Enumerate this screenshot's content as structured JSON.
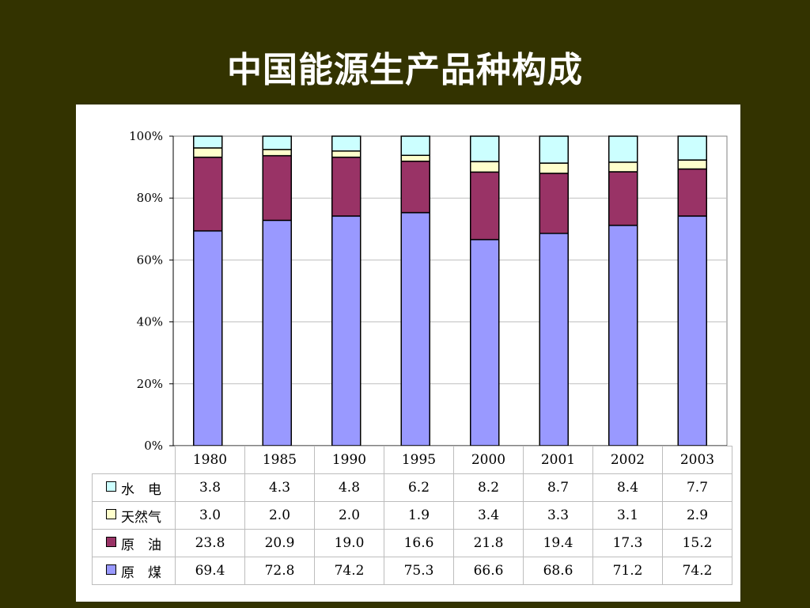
{
  "title": "中国能源生产品种构成",
  "chart_data": {
    "type": "bar",
    "stacked": true,
    "categories": [
      "1980",
      "1985",
      "1990",
      "1995",
      "2000",
      "2001",
      "2002",
      "2003"
    ],
    "series": [
      {
        "name": "原　煤",
        "color": "#9999ff",
        "values": [
          69.4,
          72.8,
          74.2,
          75.3,
          66.6,
          68.6,
          71.2,
          74.2
        ],
        "labels": [
          "69.4",
          "72.8",
          "74.2",
          "75.3",
          "66.6",
          "68.6",
          "71.2",
          "74.2"
        ]
      },
      {
        "name": "原　油",
        "color": "#993366",
        "values": [
          23.8,
          20.9,
          19.0,
          16.6,
          21.8,
          19.4,
          17.3,
          15.2
        ],
        "labels": [
          "23.8",
          "20.9",
          "19.0",
          "16.6",
          "21.8",
          "19.4",
          "17.3",
          "15.2"
        ]
      },
      {
        "name": "天然气",
        "color": "#ffffcc",
        "values": [
          3.0,
          2.0,
          2.0,
          1.9,
          3.4,
          3.3,
          3.1,
          2.9
        ],
        "labels": [
          "3.0",
          "2.0",
          "2.0",
          "1.9",
          "3.4",
          "3.3",
          "3.1",
          "2.9"
        ]
      },
      {
        "name": "水　电",
        "color": "#ccffff",
        "values": [
          3.8,
          4.3,
          4.8,
          6.2,
          8.2,
          8.7,
          8.4,
          7.7
        ],
        "labels": [
          "3.8",
          "4.3",
          "4.8",
          "6.2",
          "8.2",
          "8.7",
          "8.4",
          "7.7"
        ]
      }
    ],
    "table_order": [
      3,
      2,
      1,
      0
    ],
    "ylim": [
      0,
      100
    ],
    "yticks": [
      "0%",
      "20%",
      "40%",
      "60%",
      "80%",
      "100%"
    ],
    "grid": true,
    "legend": "data-table"
  }
}
